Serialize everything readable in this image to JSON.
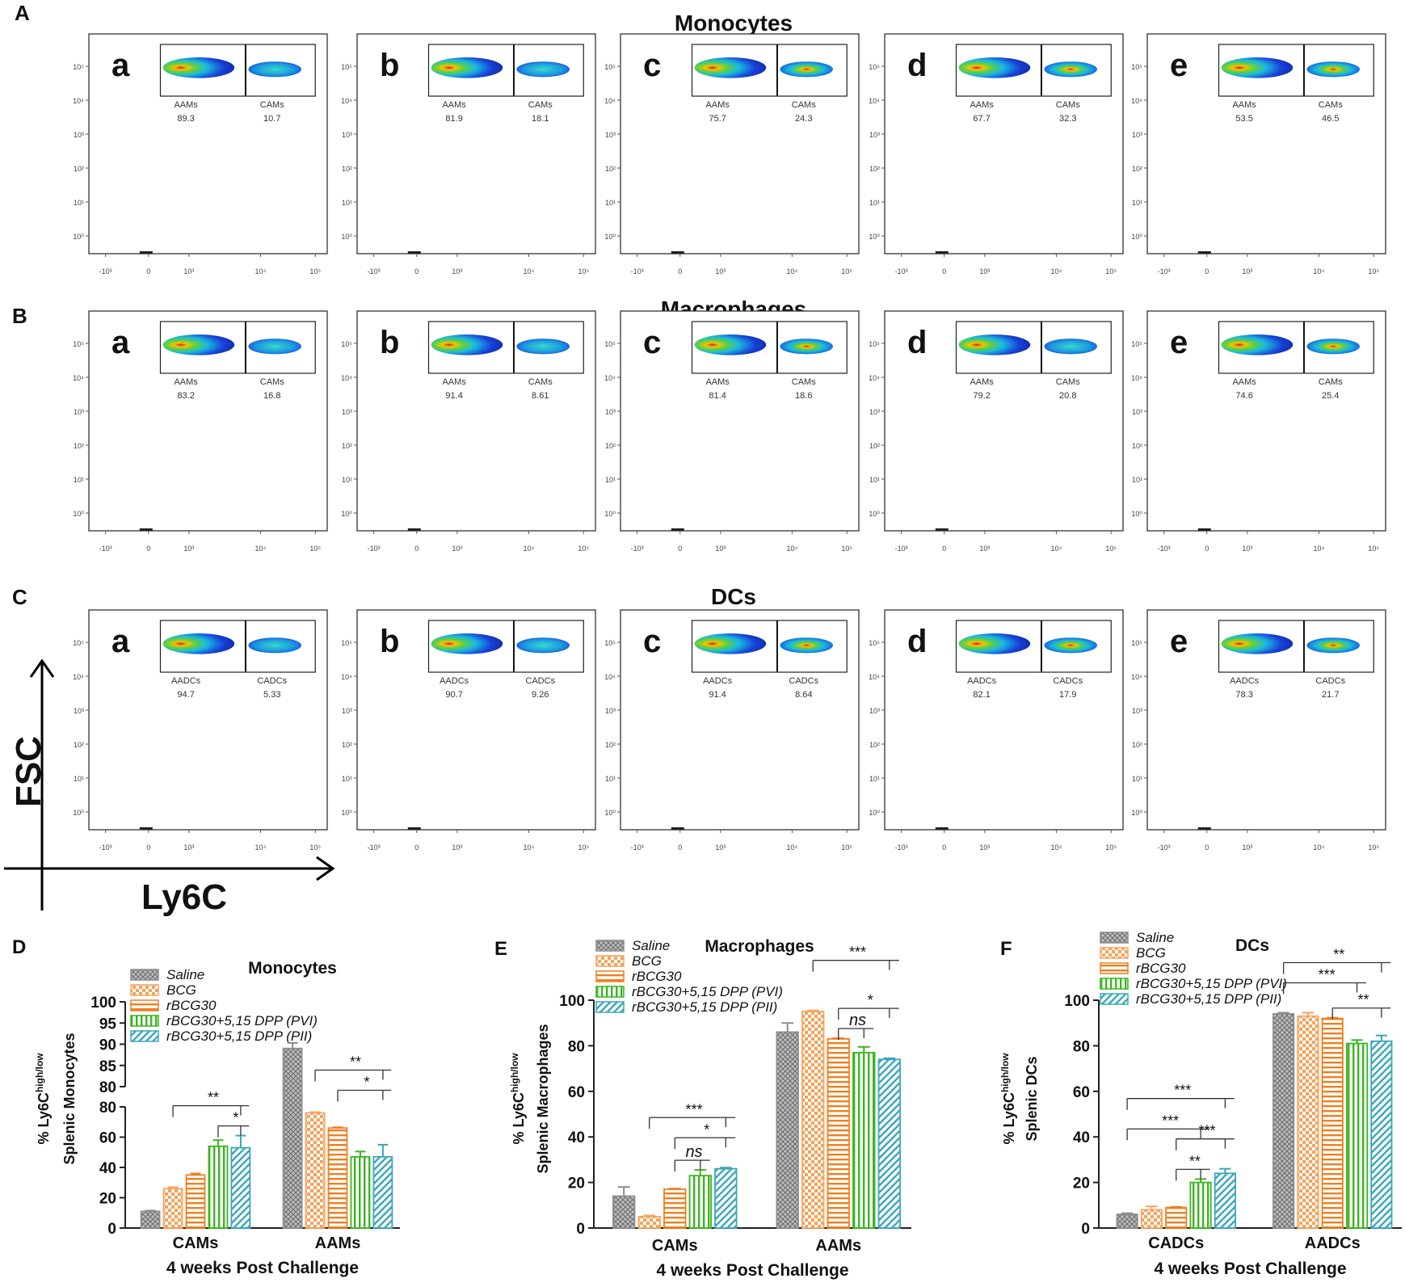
{
  "colors": {
    "saline": "#8c8c8c",
    "bcg": "#f4a460",
    "rbcg30": "#f07f1e",
    "pvi": "#3cb521",
    "pii": "#3aa6b8",
    "axis": "#222222"
  },
  "flow": {
    "axis_x_ticks": [
      "-10³",
      "0",
      "10³",
      "10⁴",
      "10⁵"
    ],
    "axis_y_ticks": [
      "10⁵",
      "10⁴",
      "10³",
      "10²",
      "10¹",
      "10⁰"
    ],
    "axis_arrows": {
      "y_label": "FSC",
      "x_label": "Ly6C"
    },
    "rows": [
      {
        "row_letter": "A",
        "title": "Monocytes",
        "gate_left": "AAMs",
        "gate_right": "CAMs",
        "panels": [
          {
            "letter": "a",
            "left_value": "89.3",
            "right_value": "10.7"
          },
          {
            "letter": "b",
            "left_value": "81.9",
            "right_value": "18.1"
          },
          {
            "letter": "c",
            "left_value": "75.7",
            "right_value": "24.3"
          },
          {
            "letter": "d",
            "left_value": "67.7",
            "right_value": "32.3"
          },
          {
            "letter": "e",
            "left_value": "53.5",
            "right_value": "46.5"
          }
        ]
      },
      {
        "row_letter": "B",
        "title": "Macrophages",
        "gate_left": "AAMs",
        "gate_right": "CAMs",
        "panels": [
          {
            "letter": "a",
            "left_value": "83.2",
            "right_value": "16.8"
          },
          {
            "letter": "b",
            "left_value": "91.4",
            "right_value": "8.61"
          },
          {
            "letter": "c",
            "left_value": "81.4",
            "right_value": "18.6"
          },
          {
            "letter": "d",
            "left_value": "79.2",
            "right_value": "20.8"
          },
          {
            "letter": "e",
            "left_value": "74.6",
            "right_value": "25.4"
          }
        ]
      },
      {
        "row_letter": "C",
        "title": "DCs",
        "gate_left": "AADCs",
        "gate_right": "CADCs",
        "panels": [
          {
            "letter": "a",
            "left_value": "94.7",
            "right_value": "5.33"
          },
          {
            "letter": "b",
            "left_value": "90.7",
            "right_value": "9.26"
          },
          {
            "letter": "c",
            "left_value": "91.4",
            "right_value": "8.64"
          },
          {
            "letter": "d",
            "left_value": "82.1",
            "right_value": "17.9"
          },
          {
            "letter": "e",
            "left_value": "78.3",
            "right_value": "21.7"
          }
        ]
      }
    ]
  },
  "chart_data": [
    {
      "type": "bar",
      "panel_letter": "D",
      "title": "Monocytes",
      "xlabel": "4 weeks Post Challenge",
      "ylabel_prefix": "% Ly6C",
      "ylabel_sup": "high/low",
      "ylabel_line2": "Splenic Monocytes",
      "categories": [
        "CAMs",
        "AAMs"
      ],
      "series": [
        {
          "name": "Saline",
          "values": [
            11,
            89
          ],
          "errors": [
            0.5,
            1.3
          ]
        },
        {
          "name": "BCG",
          "values": [
            26,
            76
          ],
          "errors": [
            1,
            0.5
          ]
        },
        {
          "name": "rBCG30",
          "values": [
            35,
            66
          ],
          "errors": [
            1,
            0.5
          ]
        },
        {
          "name": "rBCG30+5,15 DPP (PVI)",
          "values": [
            54,
            47
          ],
          "errors": [
            4,
            3.5
          ]
        },
        {
          "name": "rBCG30+5,15 DPP (PII)",
          "values": [
            53,
            47
          ],
          "errors": [
            8,
            8
          ]
        }
      ],
      "broken_axis": {
        "lower": [
          0,
          80
        ],
        "upper": [
          80,
          100
        ],
        "lower_ticks": [
          "0",
          "20",
          "40",
          "60",
          "80"
        ],
        "upper_ticks": [
          "80",
          "85",
          "90",
          "95",
          "100"
        ]
      },
      "significance": [
        {
          "group": 0,
          "from": 1,
          "to": 4,
          "label": "**",
          "level": 1
        },
        {
          "group": 0,
          "from": 3,
          "to": 4,
          "label": "*",
          "level": 0
        },
        {
          "group": 1,
          "from": 1,
          "to": 4,
          "label": "**",
          "level": 1
        },
        {
          "group": 1,
          "from": 2,
          "to": 4,
          "label": "*",
          "level": 0
        }
      ]
    },
    {
      "type": "bar",
      "panel_letter": "E",
      "title": "Macrophages",
      "xlabel": "4 weeks Post Challenge",
      "ylabel_prefix": "% Ly6C",
      "ylabel_sup": "high/low",
      "ylabel_line2": "Splenic Macrophages",
      "categories": [
        "CAMs",
        "AAMs"
      ],
      "ylim": [
        0,
        100
      ],
      "yticks": [
        "0",
        "20",
        "40",
        "60",
        "80",
        "100"
      ],
      "series": [
        {
          "name": "Saline",
          "values": [
            14,
            86
          ],
          "errors": [
            4,
            4
          ]
        },
        {
          "name": "BCG",
          "values": [
            5,
            95
          ],
          "errors": [
            0.5,
            0.5
          ]
        },
        {
          "name": "rBCG30",
          "values": [
            17,
            83
          ],
          "errors": [
            0.3,
            0.3
          ]
        },
        {
          "name": "rBCG30+5,15 DPP (PVI)",
          "values": [
            23,
            77
          ],
          "errors": [
            2.5,
            2.5
          ]
        },
        {
          "name": "rBCG30+5,15 DPP (PII)",
          "values": [
            26,
            74
          ],
          "errors": [
            0.5,
            0.5
          ]
        }
      ],
      "significance": [
        {
          "group": 0,
          "from": 1,
          "to": 4,
          "label": "***",
          "level": 2
        },
        {
          "group": 0,
          "from": 2,
          "to": 4,
          "label": "*",
          "level": 1
        },
        {
          "group": 0,
          "from": 2,
          "to": 3,
          "label": "ns",
          "level": 0
        },
        {
          "group": 1,
          "from": 1,
          "to": 4,
          "label": "***",
          "level": 2
        },
        {
          "group": 1,
          "from": 2,
          "to": 4,
          "label": "*",
          "level": 1
        },
        {
          "group": 1,
          "from": 2,
          "to": 3,
          "label": "ns",
          "level": 0
        }
      ]
    },
    {
      "type": "bar",
      "panel_letter": "F",
      "title": "DCs",
      "xlabel": "4 weeks Post Challenge",
      "ylabel_prefix": "% Ly6C",
      "ylabel_sup": "high/low",
      "ylabel_line2": "Splenic DCs",
      "categories": [
        "CADCs",
        "AADCs"
      ],
      "ylim": [
        0,
        100
      ],
      "yticks": [
        "0",
        "20",
        "40",
        "60",
        "80",
        "100"
      ],
      "series": [
        {
          "name": "Saline",
          "values": [
            6,
            94
          ],
          "errors": [
            0.5,
            0.5
          ]
        },
        {
          "name": "BCG",
          "values": [
            8,
            93
          ],
          "errors": [
            1.5,
            1.5
          ]
        },
        {
          "name": "rBCG30",
          "values": [
            9,
            92
          ],
          "errors": [
            0.3,
            0.3
          ]
        },
        {
          "name": "rBCG30+5,15 DPP (PVI)",
          "values": [
            20,
            81
          ],
          "errors": [
            1.5,
            1.5
          ]
        },
        {
          "name": "rBCG30+5,15 DPP (PII)",
          "values": [
            24,
            82
          ],
          "errors": [
            2,
            2.5
          ]
        }
      ],
      "significance": [
        {
          "group": 0,
          "from": 0,
          "to": 4,
          "label": "***",
          "level": 3
        },
        {
          "group": 0,
          "from": 0,
          "to": 3,
          "label": "***",
          "level": 2
        },
        {
          "group": 0,
          "from": 2,
          "to": 4,
          "label": "***",
          "level": 1
        },
        {
          "group": 0,
          "from": 2,
          "to": 3,
          "label": "**",
          "level": 0
        },
        {
          "group": 1,
          "from": 0,
          "to": 4,
          "label": "**",
          "level": 2
        },
        {
          "group": 1,
          "from": 0,
          "to": 3,
          "label": "***",
          "level": 1
        },
        {
          "group": 1,
          "from": 2,
          "to": 4,
          "label": "**",
          "level": 0
        }
      ]
    }
  ]
}
